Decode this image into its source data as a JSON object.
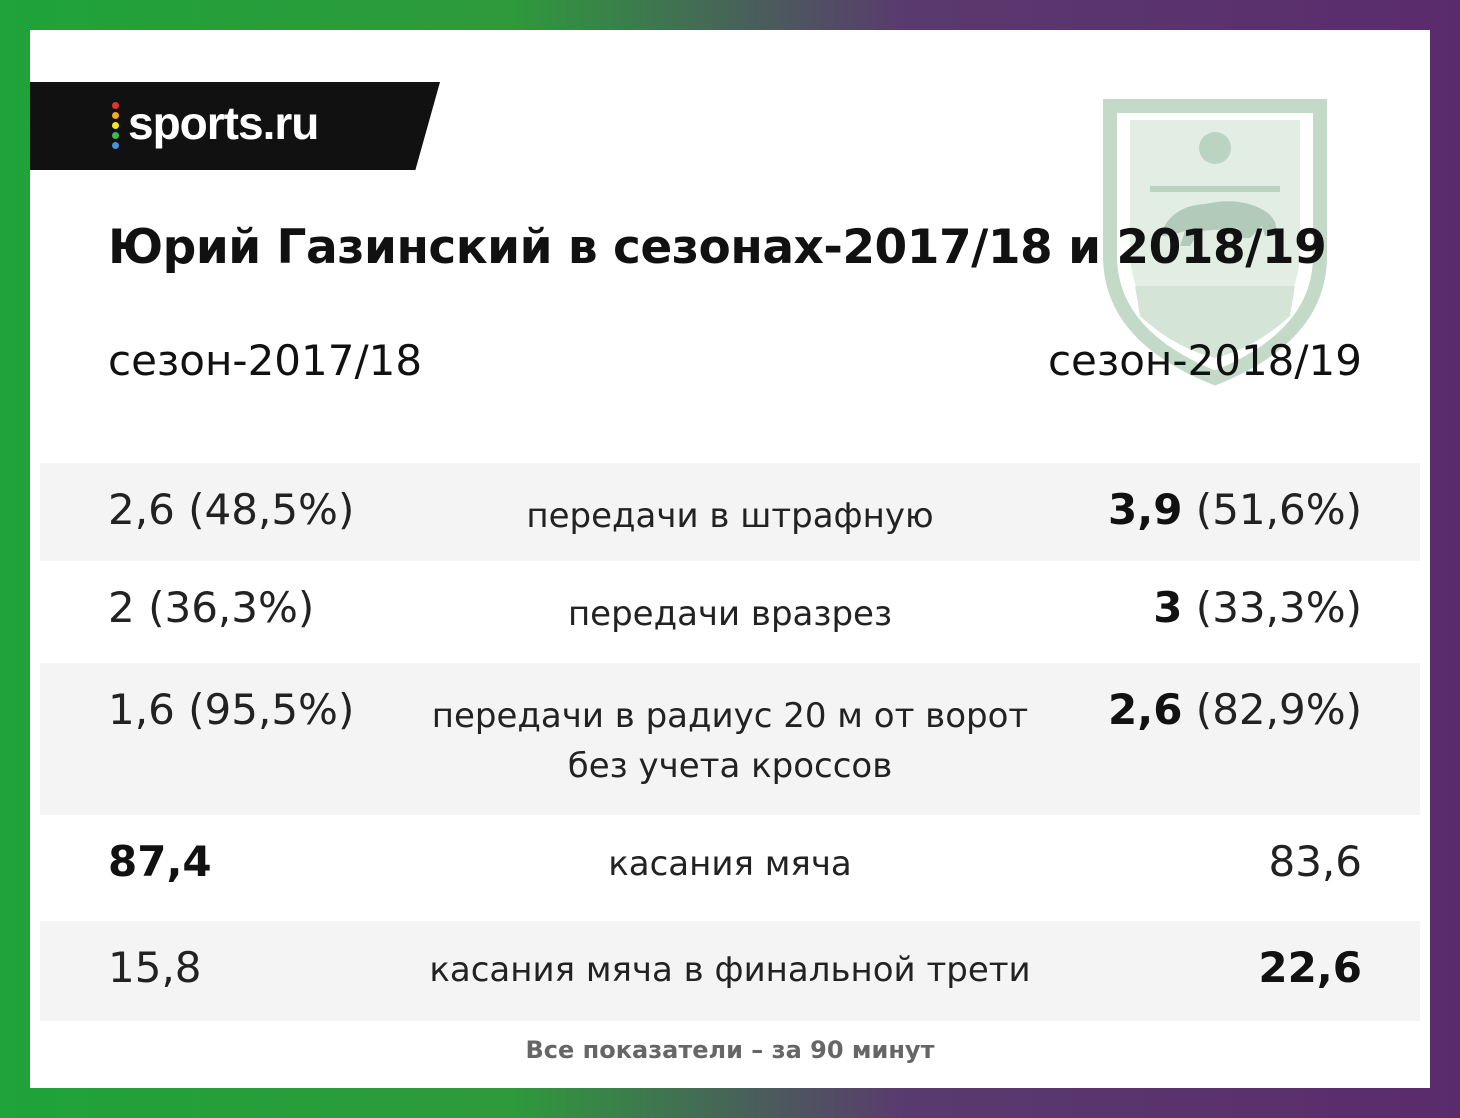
{
  "brand": {
    "logo_text": "sports.ru",
    "dot_colors": [
      "#e8312a",
      "#f5a623",
      "#f8e71c",
      "#3cba54",
      "#4a90e2",
      "#9b59b6"
    ]
  },
  "colors": {
    "frame_left": "#1fa33a",
    "frame_right": "#5a2b6c",
    "crest": "#7cae8a"
  },
  "title": "Юрий Газинский в сезонах-2017/18 и 2018/19",
  "seasons": {
    "left": "сезон-2017/18",
    "right": "сезон-2018/19"
  },
  "rows": [
    {
      "left_value": "2,6",
      "left_extra": " (48,5%)",
      "left_bold": false,
      "metric_line1": "передачи в штрафную",
      "metric_line2": "",
      "right_value": "3,9",
      "right_extra": " (51,6%)",
      "right_bold": true
    },
    {
      "left_value": "2",
      "left_extra": " (36,3%)",
      "left_bold": false,
      "metric_line1": "передачи вразрез",
      "metric_line2": "",
      "right_value": "3",
      "right_extra": " (33,3%)",
      "right_bold": true
    },
    {
      "left_value": "1,6",
      "left_extra": " (95,5%)",
      "left_bold": false,
      "metric_line1": "передачи в радиус 20 м от ворот",
      "metric_line2": "без учета кроссов",
      "right_value": "2,6",
      "right_extra": " (82,9%)",
      "right_bold": true
    },
    {
      "left_value": "87,4",
      "left_extra": "",
      "left_bold": true,
      "metric_line1": "касания мяча",
      "metric_line2": "",
      "right_value": "83,6",
      "right_extra": "",
      "right_bold": false
    },
    {
      "left_value": "15,8",
      "left_extra": "",
      "left_bold": false,
      "metric_line1": "касания мяча в финальной трети",
      "metric_line2": "",
      "right_value": "22,6",
      "right_extra": "",
      "right_bold": true
    }
  ],
  "footnote": "Все показатели – за 90 минут"
}
